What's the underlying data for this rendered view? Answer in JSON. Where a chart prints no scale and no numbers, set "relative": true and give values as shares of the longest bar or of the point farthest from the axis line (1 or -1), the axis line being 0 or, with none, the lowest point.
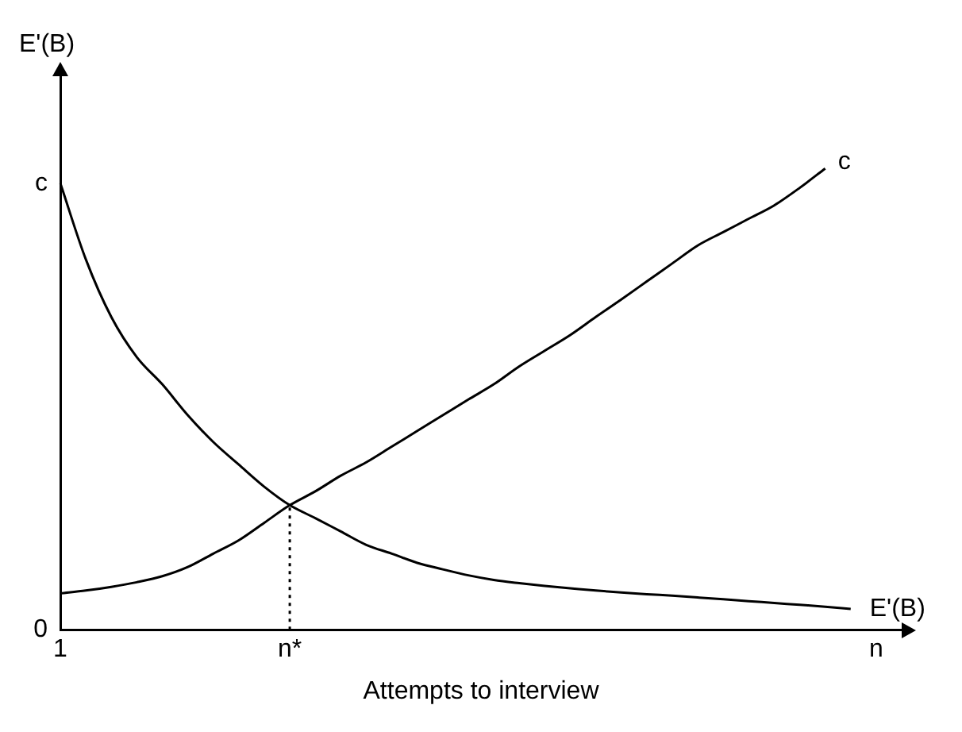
{
  "chart_data": {
    "type": "line",
    "relative": true,
    "xlabel": "Attempts to interview",
    "ylabel": "E'(B)",
    "categories": [
      "1",
      null,
      null,
      null,
      null,
      null,
      null,
      null,
      null,
      "n*",
      null,
      null,
      null,
      null,
      null,
      null,
      null,
      null,
      null,
      null,
      null,
      null,
      null,
      null,
      null,
      null,
      null,
      null,
      null,
      null,
      null,
      null,
      "n",
      null
    ],
    "grid": false,
    "legend": false,
    "marker": "none",
    "annotations": [
      {
        "text": "c",
        "x": "1",
        "y": 0.968
      },
      "0"
    ],
    "ref_lines": [
      {
        "axis": "x",
        "value": "n*",
        "line_style": "dotted",
        "color": "#000000"
      }
    ],
    "series": [
      {
        "name": "E'(B)",
        "color": "#000000",
        "values": [
          0.968,
          0.803,
          0.678,
          0.591,
          0.532,
          0.465,
          0.407,
          0.358,
          0.31,
          0.27,
          0.242,
          0.213,
          0.184,
          0.165,
          0.145,
          0.131,
          0.118,
          0.108,
          0.101,
          0.095,
          0.09,
          0.085,
          0.081,
          0.077,
          0.074,
          0.07,
          0.066,
          0.062,
          0.058,
          0.054,
          0.05,
          0.045,
          null,
          null
        ]
      },
      {
        "name": "c",
        "color": "#000000",
        "values": [
          0.079,
          0.085,
          0.093,
          0.103,
          0.116,
          0.136,
          0.165,
          0.194,
          0.232,
          0.27,
          0.3,
          0.334,
          0.363,
          0.397,
          0.431,
          0.465,
          0.499,
          0.532,
          0.571,
          0.605,
          0.639,
          0.678,
          0.716,
          0.755,
          0.794,
          0.833,
          0.862,
          0.891,
          0.92,
          0.958,
          1,
          null,
          null,
          null
        ]
      }
    ]
  }
}
